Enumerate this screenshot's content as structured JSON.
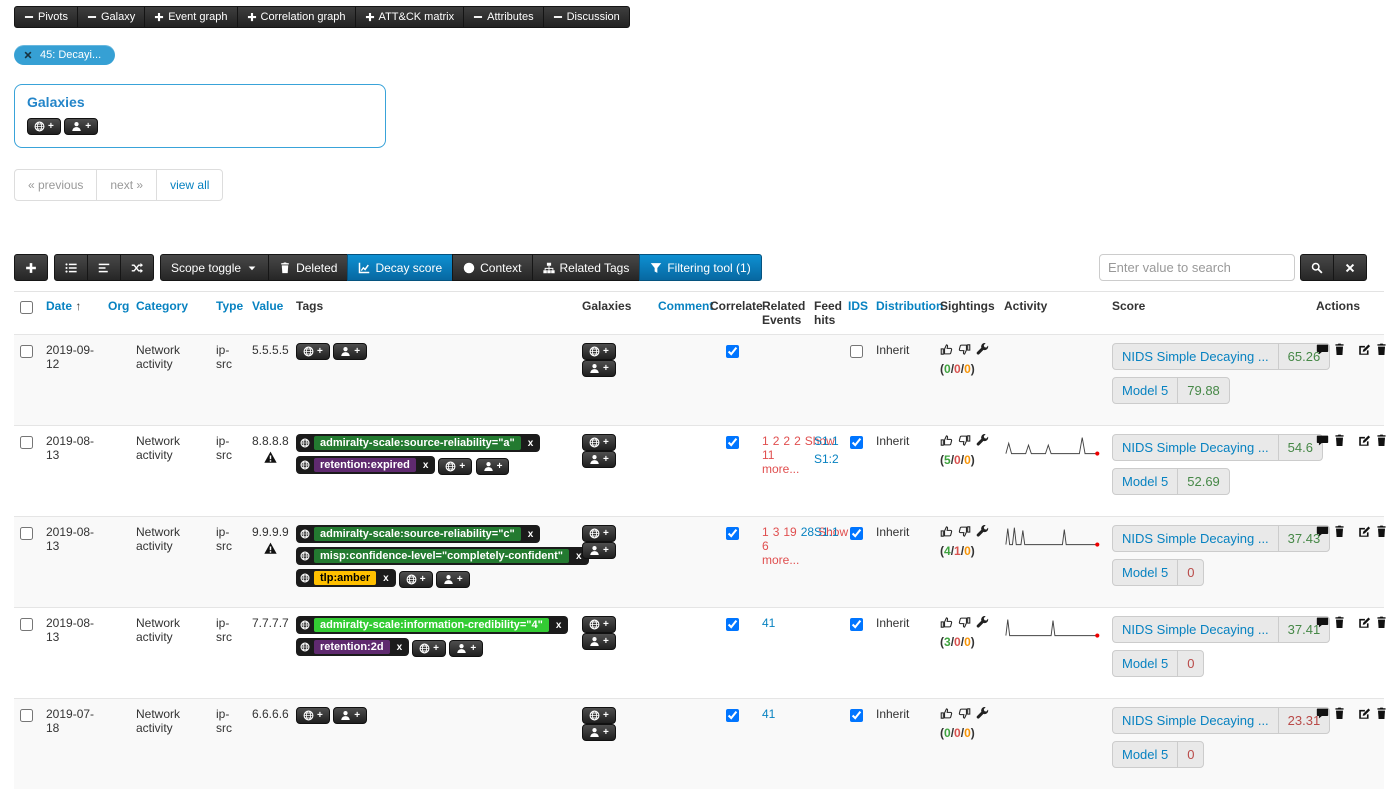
{
  "nav_tabs": [
    {
      "label": "Pivots",
      "icon": "minus"
    },
    {
      "label": "Galaxy",
      "icon": "minus"
    },
    {
      "label": "Event graph",
      "icon": "plus"
    },
    {
      "label": "Correlation graph",
      "icon": "plus"
    },
    {
      "label": "ATT&CK matrix",
      "icon": "plus"
    },
    {
      "label": "Attributes",
      "icon": "minus"
    },
    {
      "label": "Discussion",
      "icon": "minus"
    }
  ],
  "event_pill": {
    "label": "45: Decayi..."
  },
  "galaxies_panel": {
    "title": "Galaxies"
  },
  "pagination": {
    "previous": "« previous",
    "next": "next »",
    "view_all": "view all"
  },
  "toolbar": {
    "scope_toggle": "Scope toggle",
    "deleted": "Deleted",
    "decay_score": "Decay score",
    "context": "Context",
    "related_tags": "Related Tags",
    "filtering_tool": "Filtering tool (1)"
  },
  "search": {
    "placeholder": "Enter value to search"
  },
  "colors": {
    "link_blue": "#0782c1",
    "active_button_blue": "#0e90d2",
    "score_good_green": "#468847",
    "score_bad_red": "#b94a48",
    "sighting_green": "#3fa33f",
    "sighting_red": "#d9534f",
    "sighting_orange": "#f89406",
    "related_red": "#e04f4f",
    "tag_green_dark": "#237a30",
    "tag_green_bright": "#33cc33",
    "tag_purple": "#5f2a6f",
    "tag_amber": "#ffc000"
  },
  "table": {
    "headers": {
      "date": "Date",
      "org": "Org",
      "category": "Category",
      "type": "Type",
      "value": "Value",
      "tags": "Tags",
      "galaxies": "Galaxies",
      "comment": "Comment",
      "correlate": "Correlate",
      "related_events": "Related Events",
      "feed_hits": "Feed hits",
      "ids": "IDS",
      "distribution": "Distribution",
      "sightings": "Sightings",
      "activity": "Activity",
      "score": "Score",
      "actions": "Actions"
    },
    "rows": [
      {
        "date": "2019-09-12",
        "org": "",
        "category": "Network activity",
        "type": "ip-src",
        "value": "5.5.5.5",
        "warning": false,
        "tags": [],
        "comment": "",
        "correlate": true,
        "related_events": [],
        "related_more": "",
        "feed_hits": [],
        "ids": false,
        "distribution": "Inherit",
        "sightings": {
          "up": 0,
          "down": 0,
          "expired": 0
        },
        "activity": null,
        "scores": [
          {
            "name": "NIDS Simple Decaying ...",
            "value": "65.26",
            "state": "good"
          },
          {
            "name": "Model 5",
            "value": "79.88",
            "state": "good"
          }
        ]
      },
      {
        "date": "2019-08-13",
        "org": "",
        "category": "Network activity",
        "type": "ip-src",
        "value": "8.8.8.8",
        "warning": true,
        "tags": [
          {
            "label": "admiralty-scale:source-reliability=\"a\"",
            "bg": "#237a30",
            "fg": "#ffffff"
          },
          {
            "label": "retention:expired",
            "bg": "#5f2a6f",
            "fg": "#ffffff"
          }
        ],
        "comment": "",
        "correlate": true,
        "related_events": [
          {
            "label": "1",
            "color": "red"
          },
          {
            "label": "2",
            "color": "red"
          },
          {
            "label": "2",
            "color": "red"
          },
          {
            "label": "2",
            "color": "red"
          }
        ],
        "related_more": "Show 11 more...",
        "feed_hits": [
          "S1:1",
          "S1:2"
        ],
        "ids": true,
        "distribution": "Inherit",
        "sightings": {
          "up": 5,
          "down": 0,
          "expired": 0
        },
        "activity": [
          [
            2,
            20
          ],
          [
            5,
            9
          ],
          [
            8,
            20
          ],
          [
            23,
            20
          ],
          [
            26,
            11
          ],
          [
            29,
            20
          ],
          [
            44,
            20
          ],
          [
            47,
            11
          ],
          [
            50,
            20
          ],
          [
            62,
            20
          ],
          [
            80,
            20
          ],
          [
            83,
            3
          ],
          [
            86,
            20
          ],
          [
            99,
            20
          ]
        ],
        "scores": [
          {
            "name": "NIDS Simple Decaying ...",
            "value": "54.6",
            "state": "good"
          },
          {
            "name": "Model 5",
            "value": "52.69",
            "state": "good"
          }
        ]
      },
      {
        "date": "2019-08-13",
        "org": "",
        "category": "Network activity",
        "type": "ip-src",
        "value": "9.9.9.9",
        "warning": true,
        "tags": [
          {
            "label": "admiralty-scale:source-reliability=\"c\"",
            "bg": "#237a30",
            "fg": "#ffffff"
          },
          {
            "label": "misp:confidence-level=\"completely-confident\"",
            "bg": "#237a30",
            "fg": "#ffffff"
          },
          {
            "label": "tlp:amber",
            "bg": "#ffc000",
            "fg": "#000000"
          }
        ],
        "comment": "",
        "correlate": true,
        "related_events": [
          {
            "label": "1",
            "color": "red"
          },
          {
            "label": "3",
            "color": "red"
          },
          {
            "label": "19",
            "color": "red"
          },
          {
            "label": "28",
            "color": "blue"
          }
        ],
        "related_more": "Show 6 more...",
        "feed_hits": [
          "S1:1"
        ],
        "ids": true,
        "distribution": "Inherit",
        "sightings": {
          "up": 4,
          "down": 1,
          "expired": 0
        },
        "activity": [
          [
            2,
            20
          ],
          [
            4,
            3
          ],
          [
            6,
            20
          ],
          [
            9,
            20
          ],
          [
            11,
            2
          ],
          [
            13,
            20
          ],
          [
            18,
            20
          ],
          [
            20,
            5
          ],
          [
            22,
            20
          ],
          [
            40,
            20
          ],
          [
            62,
            20
          ],
          [
            64,
            4
          ],
          [
            66,
            20
          ],
          [
            99,
            20
          ]
        ],
        "scores": [
          {
            "name": "NIDS Simple Decaying ...",
            "value": "37.43",
            "state": "good"
          },
          {
            "name": "Model 5",
            "value": "0",
            "state": "bad"
          }
        ]
      },
      {
        "date": "2019-08-13",
        "org": "",
        "category": "Network activity",
        "type": "ip-src",
        "value": "7.7.7.7",
        "warning": false,
        "tags": [
          {
            "label": "admiralty-scale:information-credibility=\"4\"",
            "bg": "#33cc33",
            "fg": "#ffffff"
          },
          {
            "label": "retention:2d",
            "bg": "#5f2a6f",
            "fg": "#ffffff"
          }
        ],
        "comment": "",
        "correlate": true,
        "related_events": [
          {
            "label": "41",
            "color": "blue"
          }
        ],
        "related_more": "",
        "feed_hits": [],
        "ids": true,
        "distribution": "Inherit",
        "sightings": {
          "up": 3,
          "down": 0,
          "expired": 0
        },
        "activity": [
          [
            2,
            20
          ],
          [
            4,
            3
          ],
          [
            6,
            20
          ],
          [
            50,
            20
          ],
          [
            52,
            4
          ],
          [
            54,
            20
          ],
          [
            99,
            20
          ]
        ],
        "scores": [
          {
            "name": "NIDS Simple Decaying ...",
            "value": "37.41",
            "state": "good"
          },
          {
            "name": "Model 5",
            "value": "0",
            "state": "bad"
          }
        ]
      },
      {
        "date": "2019-07-18",
        "org": "",
        "category": "Network activity",
        "type": "ip-src",
        "value": "6.6.6.6",
        "warning": false,
        "tags": [],
        "comment": "",
        "correlate": true,
        "related_events": [
          {
            "label": "41",
            "color": "blue"
          }
        ],
        "related_more": "",
        "feed_hits": [],
        "ids": true,
        "distribution": "Inherit",
        "sightings": {
          "up": 0,
          "down": 0,
          "expired": 0
        },
        "activity": null,
        "scores": [
          {
            "name": "NIDS Simple Decaying ...",
            "value": "23.31",
            "state": "bad"
          },
          {
            "name": "Model 5",
            "value": "0",
            "state": "bad"
          }
        ]
      }
    ]
  }
}
